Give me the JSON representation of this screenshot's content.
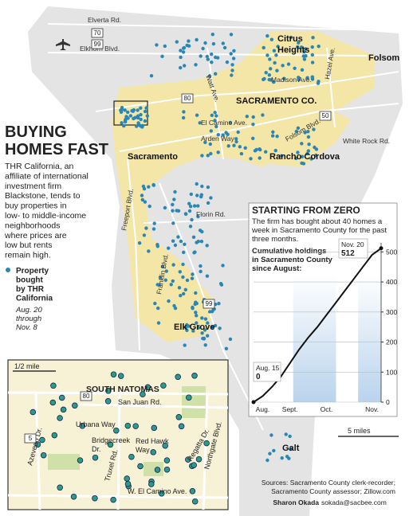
{
  "title_lines": [
    "BUYING",
    "HOMES FAST"
  ],
  "description_lines": [
    "THR California, an",
    "affiliate of international",
    "investment firm",
    "Blackstone, tends to",
    "buy properties in",
    "low- to middle-income",
    "neighborhoods",
    "where prices are",
    "low but rents",
    "remain high."
  ],
  "legend": {
    "label_lines": [
      "Property",
      "bought",
      "by THR",
      "California"
    ],
    "date_lines": [
      "Aug. 20",
      "through",
      "Nov. 8"
    ]
  },
  "map_labels": {
    "roads": [
      "Elverta Rd.",
      "Elkhorn Blvd.",
      "Watt Ave.",
      "Madison Ave.",
      "Hazel Ave.",
      "El Camino Ave.",
      "Arden Way",
      "Folsom Blvd.",
      "White Rock Rd.",
      "Freeport Blvd.",
      "Florin Rd.",
      "Franklin Blvd."
    ],
    "places": [
      "Citrus",
      "Heights",
      "Folsom",
      "SACRAMENTO CO.",
      "Rancho Cordova",
      "Sacramento",
      "Elk Grove",
      "Galt"
    ],
    "highways": [
      "70",
      "99",
      "80",
      "50",
      "99"
    ],
    "scale": "5 miles"
  },
  "inset": {
    "scale": "1/2 mile",
    "area": "SOUTH NATOMAS",
    "roads": [
      "San Juan Rd.",
      "Urbana Way",
      "Bridgecreek",
      "Dr.",
      "Red Hawk",
      "Way",
      "Azevedo Dr.",
      "Truxel Rd.",
      "Regatta Dr.",
      "Northgate Blvd.",
      "W. El Camino Ave."
    ],
    "highways": [
      "80",
      "5"
    ]
  },
  "chart_data": {
    "type": "line",
    "title": "STARTING FROM ZERO",
    "subtitle_lines": [
      "The firm has bought about 40 homes a",
      "week in Sacramento County for the past",
      "three months."
    ],
    "y_label_lines": [
      "Cumulative holdings",
      "in Sacramento County",
      "since August:"
    ],
    "categories": [
      null,
      "Aug.",
      null,
      null,
      "Sept.",
      null,
      null,
      null,
      "Oct.",
      null,
      null,
      null,
      null,
      "Nov.",
      null
    ],
    "values": [
      0,
      20,
      50,
      85,
      130,
      175,
      215,
      250,
      290,
      330,
      370,
      410,
      450,
      490,
      512
    ],
    "color": "#111111",
    "annotations": [
      "Aug. 15",
      "Nov. 20"
    ],
    "ylim": [
      0,
      530
    ],
    "yticks": [
      0,
      100,
      200,
      300,
      400,
      500
    ],
    "grid": true
  },
  "sources_lines": [
    "Sources: Sacramento County clerk-recorder;",
    "Sacramento County assessor; Zillow.com"
  ],
  "credit": {
    "name": "Sharon Okada",
    "email": "sokada@sacbee.com"
  }
}
